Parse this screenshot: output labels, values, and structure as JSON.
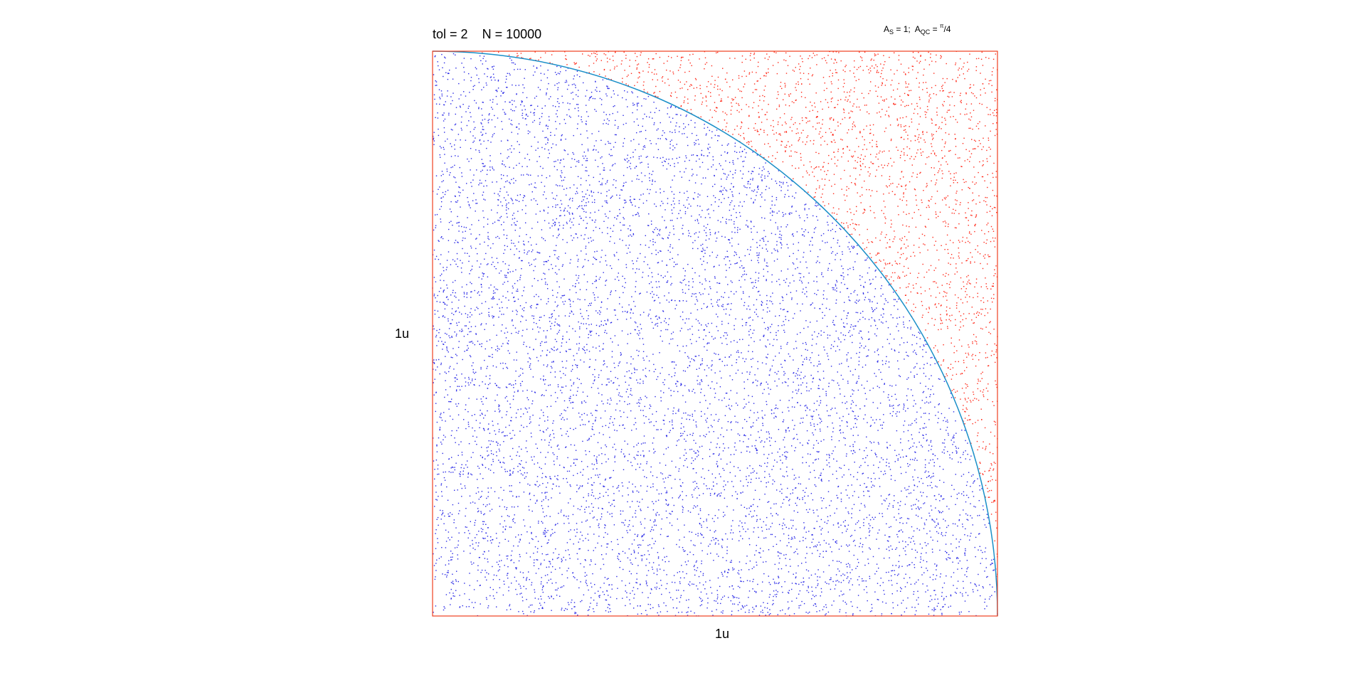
{
  "header": {
    "tol_label": "tol = 2",
    "n_label": "N = 10000",
    "area_square_prefix": "A",
    "area_square_sub": "S",
    "area_square_value": " = 1;  ",
    "area_qc_prefix": "A",
    "area_qc_sub": "QC",
    "area_qc_eq": " = ",
    "area_qc_num": "π",
    "area_qc_den": "/4"
  },
  "chart_data": {
    "type": "scatter",
    "title": "",
    "xlabel": "1u",
    "ylabel": "1u",
    "xlim": [
      0,
      1
    ],
    "ylim": [
      0,
      1
    ],
    "grid": false,
    "legend": "none",
    "tol": 2,
    "N": 10000,
    "area_square": 1,
    "area_quarter_circle": "π/4",
    "series": [
      {
        "role": "inside quarter circle",
        "color": "#2a2ae6"
      },
      {
        "role": "outside quarter circle",
        "color": "#ff2a1a"
      }
    ],
    "curve": {
      "shape": "quarter-circle",
      "radius": 1,
      "color": "#1a8fc8"
    },
    "frame_color": "#f04020"
  }
}
